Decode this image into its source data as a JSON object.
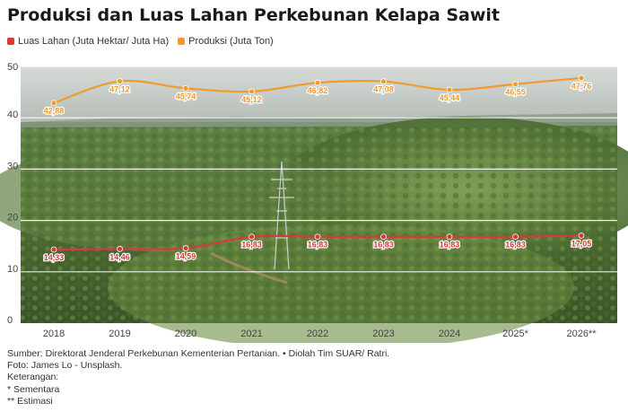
{
  "title": "Produksi dan Luas Lahan Perkebunan Kelapa Sawit",
  "legend": [
    {
      "label": "Luas Lahan (Juta Hektar/ Juta Ha)",
      "color": "#d63a3a"
    },
    {
      "label": "Produksi (Juta Ton)",
      "color": "#f29a2e"
    }
  ],
  "colors": {
    "luas": "#d63a3a",
    "produksi": "#f29a2e",
    "photo_sky": "#c6ccc8",
    "photo_forest_dark": "#3d5a2c",
    "photo_forest_light": "#7c9c52"
  },
  "chart_data": {
    "type": "line",
    "categories": [
      "2018",
      "2019",
      "2020",
      "2021",
      "2022",
      "2023",
      "2024",
      "2025*",
      "2026**"
    ],
    "series": [
      {
        "name": "Luas Lahan (Juta Hektar/ Juta Ha)",
        "values": [
          14.33,
          14.46,
          14.59,
          16.83,
          16.83,
          16.83,
          16.83,
          16.83,
          17.05
        ],
        "labels": [
          "14,33",
          "14,46",
          "14,59",
          "16,83",
          "16,83",
          "16,83",
          "16,83",
          "16,83",
          "17,05"
        ]
      },
      {
        "name": "Produksi (Juta Ton)",
        "values": [
          42.88,
          47.12,
          45.74,
          45.12,
          46.82,
          47.08,
          45.44,
          46.55,
          47.76
        ],
        "labels": [
          "42,88",
          "47,12",
          "45,74",
          "45,12",
          "46,82",
          "47,08",
          "45,44",
          "46,55",
          "47,76"
        ]
      }
    ],
    "yticks": [
      "0",
      "10",
      "20",
      "30",
      "40",
      "50"
    ],
    "ylim": [
      0,
      50
    ],
    "grid": true,
    "legend_position": "top-left"
  },
  "footnotes": [
    "Sumber: Direktorat Jenderal Perkebunan Kementerian Pertanian. • Diolah Tim SUAR/ Ratri.",
    "Foto: James Lo - Unsplash.",
    "Keterangan:",
    "* Sementara",
    "** Estimasi"
  ]
}
